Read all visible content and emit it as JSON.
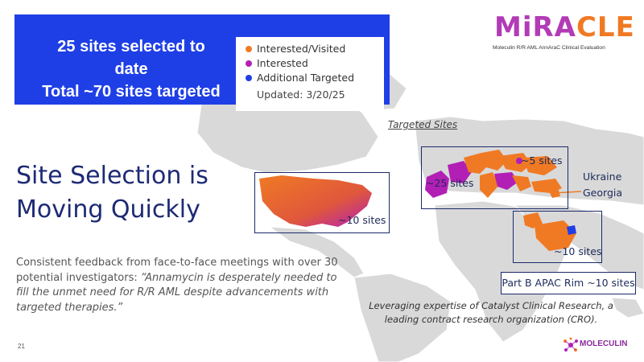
{
  "banner": {
    "line1": "25 sites selected to date",
    "line2": "Total ~70 sites targeted"
  },
  "legend": {
    "items": [
      {
        "label": "Interested/Visited",
        "color": "#f07a24"
      },
      {
        "label": "Interested",
        "color": "#b21fb5"
      },
      {
        "label": "Additional Targeted",
        "color": "#1f3fe6"
      }
    ],
    "updated": "Updated: 3/20/25"
  },
  "brand": {
    "name_part1": "MiRA",
    "name_part2": "CLE",
    "subtitle": "Moleculin R/R AML AnnAraC Clinical Evaluation"
  },
  "title": {
    "line1": "Site Selection is",
    "line2": "Moving Quickly"
  },
  "body": {
    "intro": "Consistent feedback from face-to-face meetings with over 30 potential investigators: ",
    "quote": "“Annamycin is desperately needed to fill the unmet need for R/R AML despite advancements with targeted therapies.”"
  },
  "map": {
    "targeted_label": "Targeted Sites",
    "us_sites": "~10 sites",
    "europe_sites": "~25 sites",
    "east_europe_sites": "~5 sites",
    "ukraine": "Ukraine",
    "georgia": "Georgia",
    "mideast_sites": "~10 sites",
    "apac": "Part B APAC Rim ~10 sites"
  },
  "cro_note": "Leveraging expertise of Catalyst Clinical Research, a leading contract research organization (CRO).",
  "page_number": "21",
  "footer_logo": "MOLECULIN",
  "colors": {
    "banner_blue": "#1f3fe6",
    "orange": "#f07a24",
    "purple": "#b21fb5",
    "navy": "#1d2a74"
  }
}
